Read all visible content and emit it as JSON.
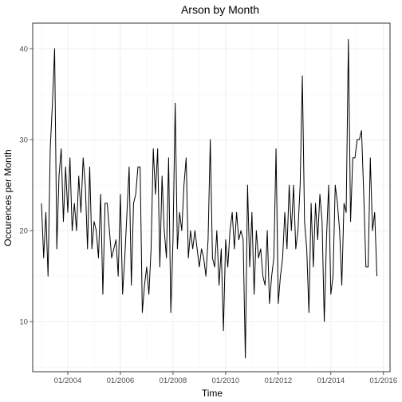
{
  "chart_data": {
    "type": "line",
    "title": "Arson by Month",
    "xlabel": "Time",
    "ylabel": "Occurences per Month",
    "x_ticks": [
      "01/2004",
      "01/2006",
      "01/2008",
      "01/2010",
      "01/2012",
      "01/2014",
      "01/2016"
    ],
    "y_ticks": [
      10,
      20,
      30,
      40
    ],
    "xlim": [
      "2002-09",
      "2016-04"
    ],
    "ylim": [
      4.5,
      42.8
    ],
    "grid": true,
    "series_color": "#000000",
    "start_month": "2003-01",
    "values": [
      23,
      17,
      22,
      15,
      29,
      34,
      40,
      18,
      26,
      29,
      21,
      27,
      22,
      28,
      20,
      23,
      20,
      26,
      22,
      28,
      25,
      18,
      27,
      18,
      21,
      20,
      17,
      24,
      13,
      23,
      23,
      20,
      17,
      18,
      19,
      15,
      24,
      13,
      17,
      22,
      27,
      14,
      23,
      24,
      27,
      27,
      11,
      14,
      16,
      13,
      18,
      29,
      24,
      29,
      16,
      26,
      20,
      17,
      28,
      11,
      19,
      34,
      18,
      22,
      20,
      25,
      28,
      17,
      20,
      18,
      20,
      18,
      16,
      18,
      17,
      15,
      19,
      30,
      17,
      16,
      20,
      14,
      18,
      9,
      19,
      16,
      20,
      22,
      18,
      22,
      19,
      20,
      19,
      6,
      25,
      16,
      22,
      13,
      20,
      17,
      18,
      15,
      14,
      20,
      12,
      15,
      17,
      29,
      12,
      15,
      17,
      22,
      18,
      25,
      20,
      25,
      18,
      20,
      25,
      37,
      21,
      18,
      11,
      23,
      16,
      23,
      19,
      24,
      21,
      10,
      19,
      25,
      13,
      15,
      25,
      23,
      20,
      14,
      23,
      22,
      41,
      21,
      28,
      28,
      30,
      30,
      31,
      24,
      16,
      16,
      28,
      20,
      22,
      15
    ]
  }
}
